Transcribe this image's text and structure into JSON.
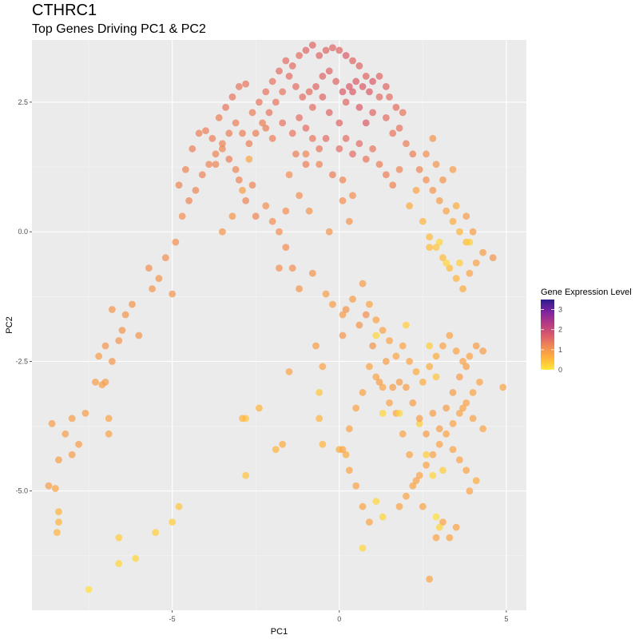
{
  "title": "CTHRC1",
  "subtitle": "Top Genes Driving PC1 & PC2",
  "chart_data": {
    "type": "scatter",
    "xlabel": "PC1",
    "ylabel": "PC2",
    "xlim": [
      -9.2,
      5.6
    ],
    "ylim": [
      -7.3,
      3.7
    ],
    "xticks": [
      -5,
      0,
      5
    ],
    "xtick_labels": [
      "-5",
      "0",
      "5"
    ],
    "yticks": [
      2.5,
      0,
      -2.5,
      -5
    ],
    "ytick_labels": [
      "2.5",
      "0.0",
      "-2.5",
      "-5.0"
    ],
    "grid": true,
    "legend": {
      "title": "Gene Expression Level",
      "placement": "right",
      "range": [
        0,
        3.5
      ],
      "ticks": [
        "0",
        "1",
        "2",
        "3"
      ]
    },
    "colorscale": [
      "#ffe83a",
      "#ffb43b",
      "#f08a55",
      "#d9596c",
      "#b23a86",
      "#7b23a0",
      "#2d1a8e"
    ],
    "point_opacity": 0.72,
    "points": [
      [
        -8.6,
        -3.7,
        0.9
      ],
      [
        -8.4,
        -4.4,
        0.9
      ],
      [
        -8.2,
        -3.9,
        0.9
      ],
      [
        -8.0,
        -4.3,
        0.9
      ],
      [
        -7.8,
        -4.1,
        0.9
      ],
      [
        -8.7,
        -4.9,
        0.9
      ],
      [
        -8.5,
        -4.95,
        0.8
      ],
      [
        -8.4,
        -5.4,
        0.6
      ],
      [
        -8.4,
        -5.6,
        0.6
      ],
      [
        -8.45,
        -5.8,
        0.6
      ],
      [
        -8.0,
        -3.6,
        0.9
      ],
      [
        -7.6,
        -3.5,
        0.9
      ],
      [
        -7.3,
        -2.9,
        0.9
      ],
      [
        -7.1,
        -2.95,
        0.9
      ],
      [
        -7.0,
        -2.9,
        0.9
      ],
      [
        -6.9,
        -3.6,
        0.8
      ],
      [
        -6.9,
        -3.9,
        0.8
      ],
      [
        -7.2,
        -2.4,
        0.9
      ],
      [
        -7.0,
        -2.2,
        1.0
      ],
      [
        -6.8,
        -2.5,
        1.0
      ],
      [
        -6.6,
        -2.1,
        1.0
      ],
      [
        -6.4,
        -1.6,
        1.0
      ],
      [
        -6.2,
        -1.4,
        1.0
      ],
      [
        -6.5,
        -1.9,
        1.0
      ],
      [
        -6.8,
        -1.5,
        1.0
      ],
      [
        -6.0,
        -2.0,
        1.0
      ],
      [
        -5.6,
        -1.1,
        1.0
      ],
      [
        -5.4,
        -0.9,
        1.0
      ],
      [
        -5.7,
        -0.7,
        1.1
      ],
      [
        -5.2,
        -0.5,
        1.1
      ],
      [
        -5.0,
        -1.2,
        1.0
      ],
      [
        -4.9,
        -0.2,
        1.1
      ],
      [
        -4.7,
        0.3,
        1.1
      ],
      [
        -4.5,
        0.6,
        1.2
      ],
      [
        -4.3,
        0.8,
        1.2
      ],
      [
        -4.1,
        1.1,
        1.2
      ],
      [
        -3.9,
        1.3,
        1.2
      ],
      [
        -3.7,
        1.5,
        1.2
      ],
      [
        -3.5,
        1.7,
        1.2
      ],
      [
        -3.3,
        1.4,
        1.3
      ],
      [
        -3.1,
        1.2,
        1.2
      ],
      [
        -4.8,
        0.9,
        1.2
      ],
      [
        -4.6,
        1.2,
        1.2
      ],
      [
        -4.4,
        1.6,
        1.3
      ],
      [
        -4.2,
        1.9,
        1.3
      ],
      [
        -4.0,
        1.95,
        1.3
      ],
      [
        -3.8,
        1.8,
        1.3
      ],
      [
        -3.6,
        2.2,
        1.3
      ],
      [
        -3.4,
        2.4,
        1.4
      ],
      [
        -3.2,
        2.6,
        1.4
      ],
      [
        -3.0,
        2.8,
        1.4
      ],
      [
        -2.8,
        2.85,
        1.4
      ],
      [
        -2.6,
        2.3,
        1.3
      ],
      [
        -2.4,
        2.5,
        1.4
      ],
      [
        -2.2,
        2.7,
        1.4
      ],
      [
        -2.0,
        2.9,
        1.4
      ],
      [
        -1.8,
        3.1,
        1.5
      ],
      [
        -1.6,
        3.3,
        1.5
      ],
      [
        -1.4,
        3.2,
        1.5
      ],
      [
        -1.2,
        3.4,
        1.5
      ],
      [
        -1.0,
        3.5,
        1.6
      ],
      [
        -0.8,
        3.6,
        1.6
      ],
      [
        -0.6,
        3.4,
        1.6
      ],
      [
        -0.4,
        3.5,
        1.6
      ],
      [
        -0.2,
        3.55,
        1.6
      ],
      [
        0.0,
        3.5,
        1.6
      ],
      [
        0.2,
        3.4,
        1.7
      ],
      [
        0.4,
        3.3,
        1.6
      ],
      [
        0.6,
        3.2,
        1.6
      ],
      [
        0.8,
        3.0,
        1.6
      ],
      [
        -2.7,
        1.4,
        0.8
      ],
      [
        -2.9,
        0.8,
        0.9
      ],
      [
        -3.2,
        0.3,
        1.0
      ],
      [
        -3.5,
        0.0,
        1.0
      ],
      [
        -1.5,
        1.1,
        1.1
      ],
      [
        -1.0,
        1.5,
        1.2
      ],
      [
        -0.6,
        1.3,
        1.2
      ],
      [
        -0.2,
        1.1,
        1.3
      ],
      [
        0.1,
        1.0,
        1.2
      ],
      [
        0.4,
        0.7,
        1.1
      ],
      [
        -2.2,
        2.0,
        1.3
      ],
      [
        -2.0,
        1.8,
        1.3
      ],
      [
        -1.7,
        2.1,
        1.4
      ],
      [
        -1.4,
        1.9,
        1.4
      ],
      [
        -1.2,
        2.2,
        1.5
      ],
      [
        -1.0,
        2.0,
        1.5
      ],
      [
        -0.8,
        2.4,
        1.5
      ],
      [
        -0.5,
        2.6,
        1.6
      ],
      [
        -0.3,
        2.3,
        1.6
      ],
      [
        0.0,
        2.1,
        1.6
      ],
      [
        0.2,
        2.5,
        1.6
      ],
      [
        0.4,
        2.7,
        1.7
      ],
      [
        0.6,
        2.4,
        1.7
      ],
      [
        0.8,
        2.1,
        1.7
      ],
      [
        1.0,
        2.3,
        1.6
      ],
      [
        1.2,
        2.6,
        1.5
      ],
      [
        1.4,
        2.2,
        1.5
      ],
      [
        1.6,
        1.9,
        1.4
      ],
      [
        1.8,
        2.0,
        1.4
      ],
      [
        2.0,
        1.7,
        1.3
      ],
      [
        2.2,
        1.5,
        1.3
      ],
      [
        2.4,
        1.2,
        1.2
      ],
      [
        2.6,
        1.0,
        1.1
      ],
      [
        2.8,
        0.8,
        1.0
      ],
      [
        3.0,
        0.6,
        0.9
      ],
      [
        3.2,
        0.4,
        0.8
      ],
      [
        3.4,
        0.2,
        0.7
      ],
      [
        3.6,
        0.0,
        0.6
      ],
      [
        3.8,
        -0.2,
        0.5
      ],
      [
        3.5,
        0.5,
        0.7
      ],
      [
        2.3,
        0.8,
        0.8
      ],
      [
        2.1,
        0.5,
        0.7
      ],
      [
        2.5,
        0.2,
        0.6
      ],
      [
        2.7,
        -0.1,
        0.5
      ],
      [
        2.9,
        -0.3,
        0.4
      ],
      [
        3.1,
        -0.5,
        0.5
      ],
      [
        3.3,
        -0.7,
        0.5
      ],
      [
        3.5,
        -0.9,
        0.6
      ],
      [
        3.7,
        -1.1,
        0.7
      ],
      [
        3.9,
        -0.8,
        0.8
      ],
      [
        4.1,
        -0.6,
        0.8
      ],
      [
        4.3,
        -0.4,
        0.9
      ],
      [
        4.6,
        -0.5,
        1.0
      ],
      [
        4.0,
        0.0,
        0.9
      ],
      [
        3.8,
        0.3,
        0.9
      ],
      [
        3.4,
        1.2,
        0.9
      ],
      [
        3.1,
        1.0,
        1.0
      ],
      [
        2.9,
        1.3,
        1.0
      ],
      [
        2.6,
        1.5,
        1.1
      ],
      [
        2.8,
        1.8,
        1.0
      ],
      [
        1.0,
        2.9,
        1.7
      ],
      [
        1.2,
        3.0,
        1.6
      ],
      [
        1.4,
        2.8,
        1.6
      ],
      [
        1.5,
        2.6,
        1.5
      ],
      [
        1.7,
        2.4,
        1.5
      ],
      [
        1.9,
        2.3,
        1.4
      ],
      [
        0.9,
        2.7,
        1.7
      ],
      [
        0.7,
        2.8,
        1.7
      ],
      [
        0.5,
        2.9,
        1.7
      ],
      [
        0.3,
        2.8,
        1.7
      ],
      [
        0.1,
        2.7,
        1.7
      ],
      [
        -0.1,
        2.9,
        1.6
      ],
      [
        -0.3,
        3.1,
        1.6
      ],
      [
        -0.5,
        3.0,
        1.6
      ],
      [
        -0.7,
        2.8,
        1.6
      ],
      [
        -0.9,
        2.7,
        1.5
      ],
      [
        -1.1,
        2.6,
        1.5
      ],
      [
        -1.3,
        2.8,
        1.5
      ],
      [
        -1.5,
        3.0,
        1.5
      ],
      [
        -1.7,
        2.7,
        1.4
      ],
      [
        -1.9,
        2.5,
        1.4
      ],
      [
        -2.1,
        2.3,
        1.4
      ],
      [
        -2.3,
        2.1,
        1.3
      ],
      [
        -2.5,
        1.9,
        1.3
      ],
      [
        -2.7,
        1.7,
        1.3
      ],
      [
        -2.9,
        1.9,
        1.3
      ],
      [
        -3.1,
        2.1,
        1.3
      ],
      [
        -3.3,
        1.9,
        1.3
      ],
      [
        -3.5,
        1.6,
        1.2
      ],
      [
        -3.7,
        1.3,
        1.2
      ],
      [
        0.0,
        1.6,
        1.5
      ],
      [
        0.2,
        1.8,
        1.5
      ],
      [
        0.4,
        1.5,
        1.5
      ],
      [
        0.6,
        1.7,
        1.5
      ],
      [
        0.8,
        1.4,
        1.4
      ],
      [
        1.0,
        1.6,
        1.4
      ],
      [
        1.2,
        1.3,
        1.3
      ],
      [
        1.4,
        1.1,
        1.3
      ],
      [
        1.6,
        0.9,
        1.2
      ],
      [
        1.8,
        1.2,
        1.2
      ],
      [
        -0.4,
        1.8,
        1.5
      ],
      [
        -0.6,
        1.6,
        1.4
      ],
      [
        -0.8,
        1.8,
        1.4
      ],
      [
        -1.0,
        1.3,
        1.3
      ],
      [
        -1.3,
        1.5,
        1.3
      ],
      [
        0.1,
        0.6,
        1.1
      ],
      [
        0.3,
        0.2,
        1.0
      ],
      [
        -0.3,
        0.0,
        1.0
      ],
      [
        -1.6,
        -0.3,
        1.1
      ],
      [
        -1.4,
        -0.7,
        1.1
      ],
      [
        -1.8,
        -0.7,
        1.1
      ],
      [
        -1.2,
        -1.1,
        1.0
      ],
      [
        -0.8,
        -0.8,
        1.0
      ],
      [
        -0.4,
        -1.2,
        0.9
      ],
      [
        -0.2,
        -1.4,
        0.9
      ],
      [
        0.1,
        -1.6,
        0.9
      ],
      [
        0.4,
        -1.3,
        0.9
      ],
      [
        0.7,
        -1.0,
        0.9
      ],
      [
        0.9,
        -1.4,
        0.8
      ],
      [
        1.1,
        -1.7,
        0.8
      ],
      [
        1.3,
        -1.9,
        0.8
      ],
      [
        1.5,
        -2.1,
        0.8
      ],
      [
        1.7,
        -2.4,
        0.8
      ],
      [
        1.9,
        -2.2,
        0.8
      ],
      [
        2.1,
        -2.5,
        0.8
      ],
      [
        2.3,
        -2.7,
        0.7
      ],
      [
        2.5,
        -2.9,
        0.7
      ],
      [
        2.7,
        -2.6,
        0.7
      ],
      [
        2.9,
        -2.4,
        0.7
      ],
      [
        3.1,
        -2.2,
        0.8
      ],
      [
        3.3,
        -2.0,
        0.8
      ],
      [
        3.5,
        -2.3,
        0.8
      ],
      [
        3.7,
        -2.5,
        0.8
      ],
      [
        3.9,
        -2.4,
        0.8
      ],
      [
        4.1,
        -2.2,
        0.9
      ],
      [
        4.3,
        -2.3,
        0.9
      ],
      [
        4.9,
        -3.0,
        0.8
      ],
      [
        4.2,
        -2.9,
        0.8
      ],
      [
        4.0,
        -3.1,
        0.8
      ],
      [
        3.8,
        -3.3,
        0.8
      ],
      [
        3.6,
        -3.5,
        0.8
      ],
      [
        3.4,
        -3.7,
        0.8
      ],
      [
        3.2,
        -3.9,
        0.8
      ],
      [
        3.0,
        -4.1,
        0.8
      ],
      [
        2.8,
        -4.3,
        0.8
      ],
      [
        2.6,
        -4.5,
        0.8
      ],
      [
        2.4,
        -4.7,
        0.8
      ],
      [
        2.2,
        -4.9,
        0.8
      ],
      [
        2.0,
        -5.1,
        0.8
      ],
      [
        1.8,
        -5.3,
        0.8
      ],
      [
        3.8,
        -4.6,
        0.8
      ],
      [
        3.6,
        -4.4,
        0.8
      ],
      [
        3.4,
        -4.2,
        0.8
      ],
      [
        3.9,
        -5.0,
        0.8
      ],
      [
        4.1,
        -4.8,
        0.7
      ],
      [
        4.3,
        -3.8,
        0.8
      ],
      [
        4.0,
        -3.6,
        0.8
      ],
      [
        3.7,
        -3.4,
        0.8
      ],
      [
        2.7,
        -6.7,
        0.8
      ],
      [
        2.9,
        -5.9,
        0.8
      ],
      [
        3.1,
        -5.6,
        0.8
      ],
      [
        3.3,
        -5.9,
        0.8
      ],
      [
        3.5,
        -5.7,
        0.8
      ],
      [
        2.5,
        -5.3,
        0.8
      ],
      [
        2.3,
        -4.8,
        0.8
      ],
      [
        2.1,
        -4.3,
        0.8
      ],
      [
        1.9,
        -3.9,
        0.8
      ],
      [
        1.7,
        -3.5,
        0.8
      ],
      [
        1.5,
        -3.3,
        0.8
      ],
      [
        1.3,
        -3.0,
        0.8
      ],
      [
        1.1,
        -2.8,
        0.8
      ],
      [
        0.9,
        -2.6,
        0.8
      ],
      [
        0.7,
        -3.1,
        0.8
      ],
      [
        0.5,
        -3.4,
        0.8
      ],
      [
        0.3,
        -3.8,
        0.8
      ],
      [
        0.1,
        -4.2,
        0.8
      ],
      [
        0.3,
        -4.6,
        0.8
      ],
      [
        0.5,
        -4.9,
        0.8
      ],
      [
        0.7,
        -5.3,
        0.8
      ],
      [
        0.9,
        -5.6,
        0.8
      ],
      [
        1.1,
        -5.2,
        0.2
      ],
      [
        1.3,
        -5.5,
        0.2
      ],
      [
        0.7,
        -6.1,
        0.2
      ],
      [
        3.0,
        -5.7,
        0.2
      ],
      [
        2.9,
        -5.5,
        0.1
      ],
      [
        2.8,
        -4.7,
        0.2
      ],
      [
        2.6,
        -4.3,
        0.3
      ],
      [
        2.4,
        -3.7,
        0.3
      ],
      [
        1.3,
        -3.5,
        0.2
      ],
      [
        1.8,
        -3.5,
        0.2
      ],
      [
        1.1,
        -2.0,
        0.2
      ],
      [
        2.0,
        -1.8,
        0.3
      ],
      [
        2.7,
        -2.2,
        0.3
      ],
      [
        2.9,
        -2.8,
        0.4
      ],
      [
        3.1,
        -4.6,
        0.3
      ],
      [
        3.9,
        -0.2,
        0.3
      ],
      [
        3.0,
        -0.2,
        0.2
      ],
      [
        3.2,
        -0.6,
        0.2
      ],
      [
        3.6,
        -0.6,
        0.3
      ],
      [
        2.7,
        -0.3,
        0.5
      ],
      [
        -7.5,
        -6.9,
        0.1
      ],
      [
        -6.6,
        -6.4,
        0.2
      ],
      [
        -6.1,
        -6.3,
        0.2
      ],
      [
        -5.5,
        -5.8,
        0.3
      ],
      [
        -5.0,
        -5.6,
        0.3
      ],
      [
        -4.8,
        -5.3,
        0.4
      ],
      [
        -6.6,
        -5.9,
        0.3
      ],
      [
        -2.8,
        -3.6,
        0.4
      ],
      [
        -2.8,
        -4.7,
        0.4
      ],
      [
        -2.4,
        -3.4,
        0.6
      ],
      [
        -2.9,
        -3.6,
        0.6
      ],
      [
        -1.9,
        -4.2,
        0.6
      ],
      [
        -1.7,
        -4.1,
        0.7
      ],
      [
        -0.6,
        -3.1,
        0.4
      ],
      [
        -0.6,
        -3.6,
        0.6
      ],
      [
        -0.5,
        -4.1,
        0.6
      ],
      [
        0.0,
        -4.2,
        0.7
      ],
      [
        0.2,
        -4.3,
        0.7
      ],
      [
        -1.5,
        -2.7,
        0.8
      ],
      [
        -0.5,
        -2.6,
        0.8
      ],
      [
        -0.7,
        -2.2,
        0.9
      ],
      [
        0.1,
        -2.0,
        1.0
      ],
      [
        0.2,
        -1.5,
        1.0
      ],
      [
        0.6,
        -1.8,
        1.0
      ],
      [
        0.8,
        -1.6,
        1.1
      ],
      [
        1.0,
        -2.2,
        1.0
      ],
      [
        1.2,
        -2.9,
        0.9
      ],
      [
        1.4,
        -2.5,
        0.9
      ],
      [
        1.6,
        -3.0,
        0.9
      ],
      [
        1.8,
        -2.9,
        0.9
      ],
      [
        2.0,
        -3.0,
        0.9
      ],
      [
        2.2,
        -3.3,
        0.9
      ],
      [
        2.4,
        -3.6,
        0.9
      ],
      [
        2.6,
        -3.9,
        0.9
      ],
      [
        2.8,
        -3.5,
        0.9
      ],
      [
        3.0,
        -3.8,
        0.9
      ],
      [
        3.2,
        -3.4,
        0.9
      ],
      [
        3.4,
        -3.1,
        0.9
      ],
      [
        3.6,
        -2.8,
        0.9
      ],
      [
        3.8,
        -2.6,
        0.9
      ],
      [
        -3.0,
        1.0,
        1.2
      ],
      [
        -2.8,
        0.6,
        1.2
      ],
      [
        -2.6,
        0.9,
        1.2
      ],
      [
        -2.5,
        0.3,
        1.2
      ],
      [
        -2.2,
        0.5,
        1.1
      ],
      [
        -2.0,
        0.2,
        1.1
      ],
      [
        -1.8,
        0.0,
        1.1
      ],
      [
        -1.6,
        0.4,
        1.1
      ],
      [
        -1.2,
        0.7,
        1.1
      ],
      [
        -0.9,
        0.4,
        1.0
      ]
    ]
  }
}
